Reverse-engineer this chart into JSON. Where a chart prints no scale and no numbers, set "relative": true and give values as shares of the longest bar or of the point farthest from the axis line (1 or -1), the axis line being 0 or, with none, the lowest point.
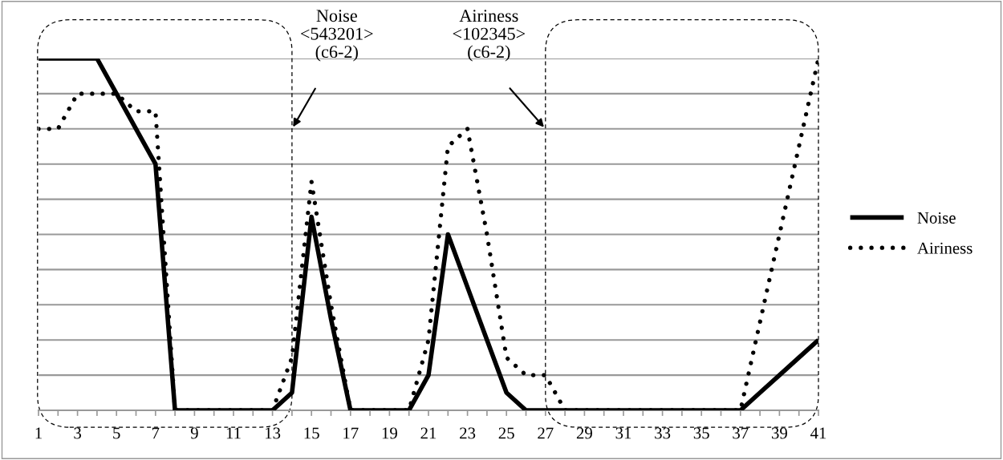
{
  "chart_data": {
    "type": "line",
    "relative": true,
    "categories": [
      "1",
      null,
      "3",
      null,
      "5",
      null,
      "7",
      null,
      "9",
      null,
      "11",
      null,
      "13",
      null,
      "15",
      null,
      "17",
      null,
      "19",
      null,
      "21",
      null,
      "23",
      null,
      "25",
      null,
      "27",
      null,
      "29",
      null,
      "31",
      null,
      "33",
      null,
      "35",
      null,
      "37",
      null,
      "39",
      null,
      "41"
    ],
    "series": [
      {
        "name": "Noise",
        "color": "#000000",
        "line_style": "solid",
        "values": [
          1,
          1,
          1,
          1,
          0.9,
          0.8,
          0.7,
          0,
          0,
          0,
          0,
          0,
          0,
          0.05,
          0.55,
          0.26,
          0,
          0,
          0,
          0,
          0.1,
          0.5,
          0.35,
          0.2,
          0.05,
          0,
          0,
          0,
          0,
          0,
          0,
          0,
          0,
          0,
          0,
          0,
          0,
          0.05,
          0.1,
          0.15,
          0.2
        ]
      },
      {
        "name": "Airiness",
        "color": "#000000",
        "line_style": "dotted",
        "values": [
          0.8,
          0.8,
          0.9,
          0.9,
          0.9,
          0.85,
          0.85,
          0,
          0,
          0,
          0,
          0,
          0,
          0.15,
          0.65,
          0.3,
          0,
          0,
          0,
          0,
          0.2,
          0.75,
          0.8,
          0.5,
          0.15,
          0.1,
          0.1,
          0,
          0,
          0,
          0,
          0,
          0,
          0,
          0,
          0,
          0,
          0.25,
          0.5,
          0.75,
          1
        ]
      }
    ],
    "annotations": [
      "Noise\n<543201>\n(c6-2)",
      "Airiness\n<102345>\n(c6-2)"
    ],
    "grid": "y",
    "legend": "right",
    "marker": "none"
  }
}
